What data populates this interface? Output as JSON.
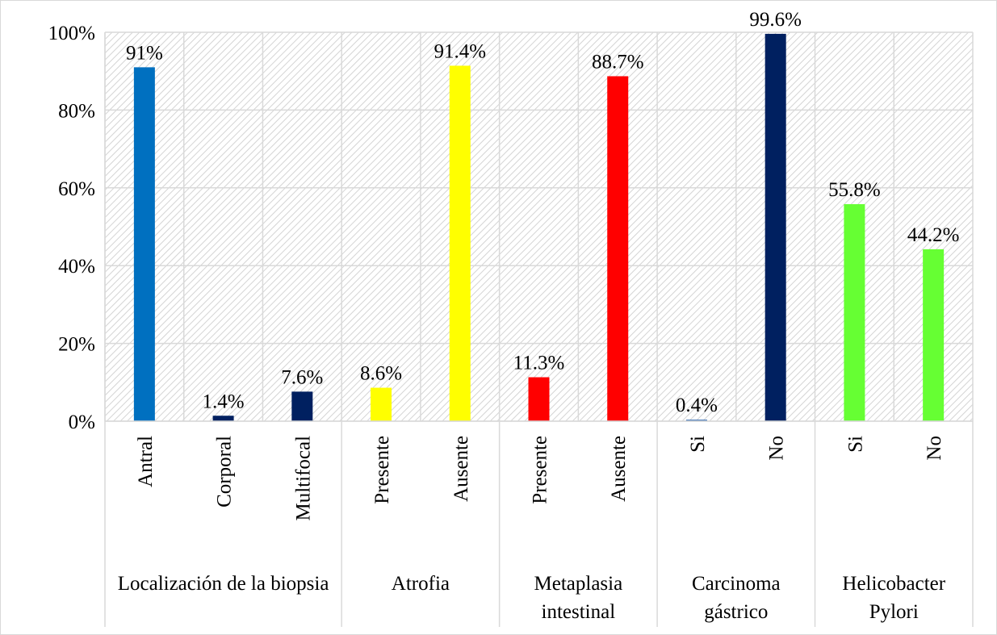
{
  "chart_data": {
    "type": "bar",
    "categories": [
      "Antral",
      "Corporal",
      "Multifocal",
      "Presente",
      "Ausente",
      "Presente",
      "Ausente",
      "Si",
      "No",
      "Si",
      "No"
    ],
    "groups": [
      {
        "label": "Localización de la biopsia",
        "size": 3
      },
      {
        "label": "Atrofia",
        "size": 2
      },
      {
        "label": "Metaplasia intestinal",
        "size": 2
      },
      {
        "label": "Carcinoma gástrico",
        "size": 2
      },
      {
        "label": "Helicobacter Pylori",
        "size": 2
      }
    ],
    "values": [
      91,
      1.4,
      7.6,
      8.6,
      91.4,
      11.3,
      88.7,
      0.4,
      99.6,
      55.8,
      44.2
    ],
    "value_labels": [
      "91%",
      "1.4%",
      "7.6%",
      "8.6%",
      "91.4%",
      "11.3%",
      "88.7%",
      "0.4%",
      "99.6%",
      "55.8%",
      "44.2%"
    ],
    "colors": [
      "#0070c0",
      "#002060",
      "#002060",
      "#ffff00",
      "#ffff00",
      "#ff0000",
      "#ff0000",
      "#4a7ab8",
      "#002060",
      "#66ff33",
      "#66ff33"
    ],
    "ylim": [
      0,
      100
    ],
    "yticks": [
      {
        "value": 0,
        "label": "0%"
      },
      {
        "value": 20,
        "label": "20%"
      },
      {
        "value": 40,
        "label": "40%"
      },
      {
        "value": 60,
        "label": "60%"
      },
      {
        "value": 80,
        "label": "80%"
      },
      {
        "value": 100,
        "label": "100%"
      }
    ],
    "grid": true
  }
}
